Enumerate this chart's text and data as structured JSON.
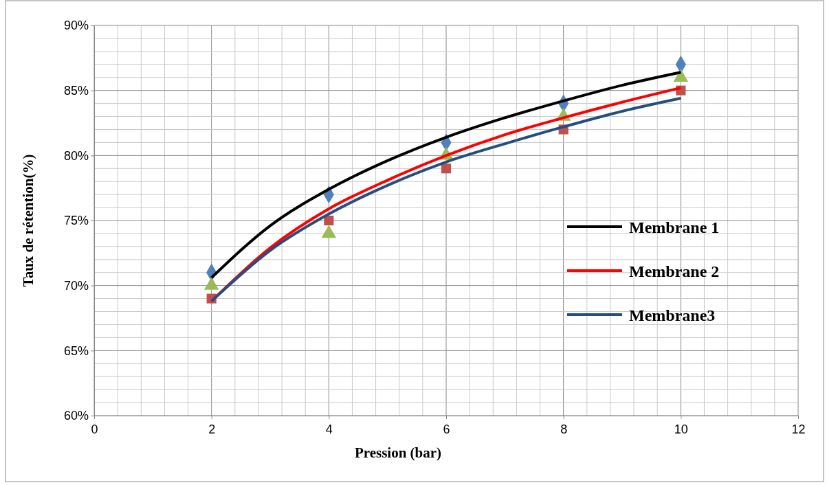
{
  "chart_data": {
    "type": "scatter",
    "xlabel": "Pression (bar)",
    "ylabel": "Taux de rétention(%)",
    "x": [
      2,
      4,
      6,
      8,
      10
    ],
    "xlim": [
      0,
      12
    ],
    "xticks": [
      0,
      2,
      4,
      6,
      8,
      10,
      12
    ],
    "ylim": [
      60,
      90
    ],
    "yticks": [
      {
        "value": 60,
        "label": "60%"
      },
      {
        "value": 65,
        "label": "65%"
      },
      {
        "value": 70,
        "label": "70%"
      },
      {
        "value": 75,
        "label": "75%"
      },
      {
        "value": 80,
        "label": "80%"
      },
      {
        "value": 85,
        "label": "85%"
      },
      {
        "value": 90,
        "label": "90%"
      }
    ],
    "grid": true,
    "legend": "right",
    "series": [
      {
        "marker": "diamond",
        "color": "#4f81bd",
        "values": [
          71,
          77,
          81,
          84,
          87
        ]
      },
      {
        "marker": "square",
        "color": "#c0504d",
        "values": [
          69,
          75,
          79,
          82,
          85
        ]
      },
      {
        "marker": "triangle",
        "color": "#9bbb59",
        "values": [
          70,
          74,
          80,
          83,
          86
        ]
      },
      {
        "type": "line",
        "name": "Membrane 1",
        "color": "#000000",
        "marker": "none",
        "x": [
          2,
          3,
          4,
          5,
          6,
          7,
          8,
          9,
          10
        ],
        "values": [
          70.6,
          74.6,
          77.4,
          79.6,
          81.4,
          82.9,
          84.2,
          85.4,
          86.4
        ]
      },
      {
        "type": "line",
        "name": "Membrane 2",
        "color": "#ff0000",
        "marker": "none",
        "x": [
          2,
          3,
          4,
          5,
          6,
          7,
          8,
          9,
          10
        ],
        "values": [
          68.8,
          72.9,
          75.9,
          78.1,
          80.0,
          81.6,
          82.9,
          84.1,
          85.2
        ]
      },
      {
        "type": "line",
        "name": "Membrane3",
        "color": "#254e80",
        "marker": "none",
        "x": [
          2,
          3,
          4,
          5,
          6,
          7,
          8,
          9,
          10
        ],
        "values": [
          68.8,
          72.7,
          75.5,
          77.7,
          79.5,
          80.9,
          82.2,
          83.4,
          84.4
        ]
      }
    ]
  }
}
